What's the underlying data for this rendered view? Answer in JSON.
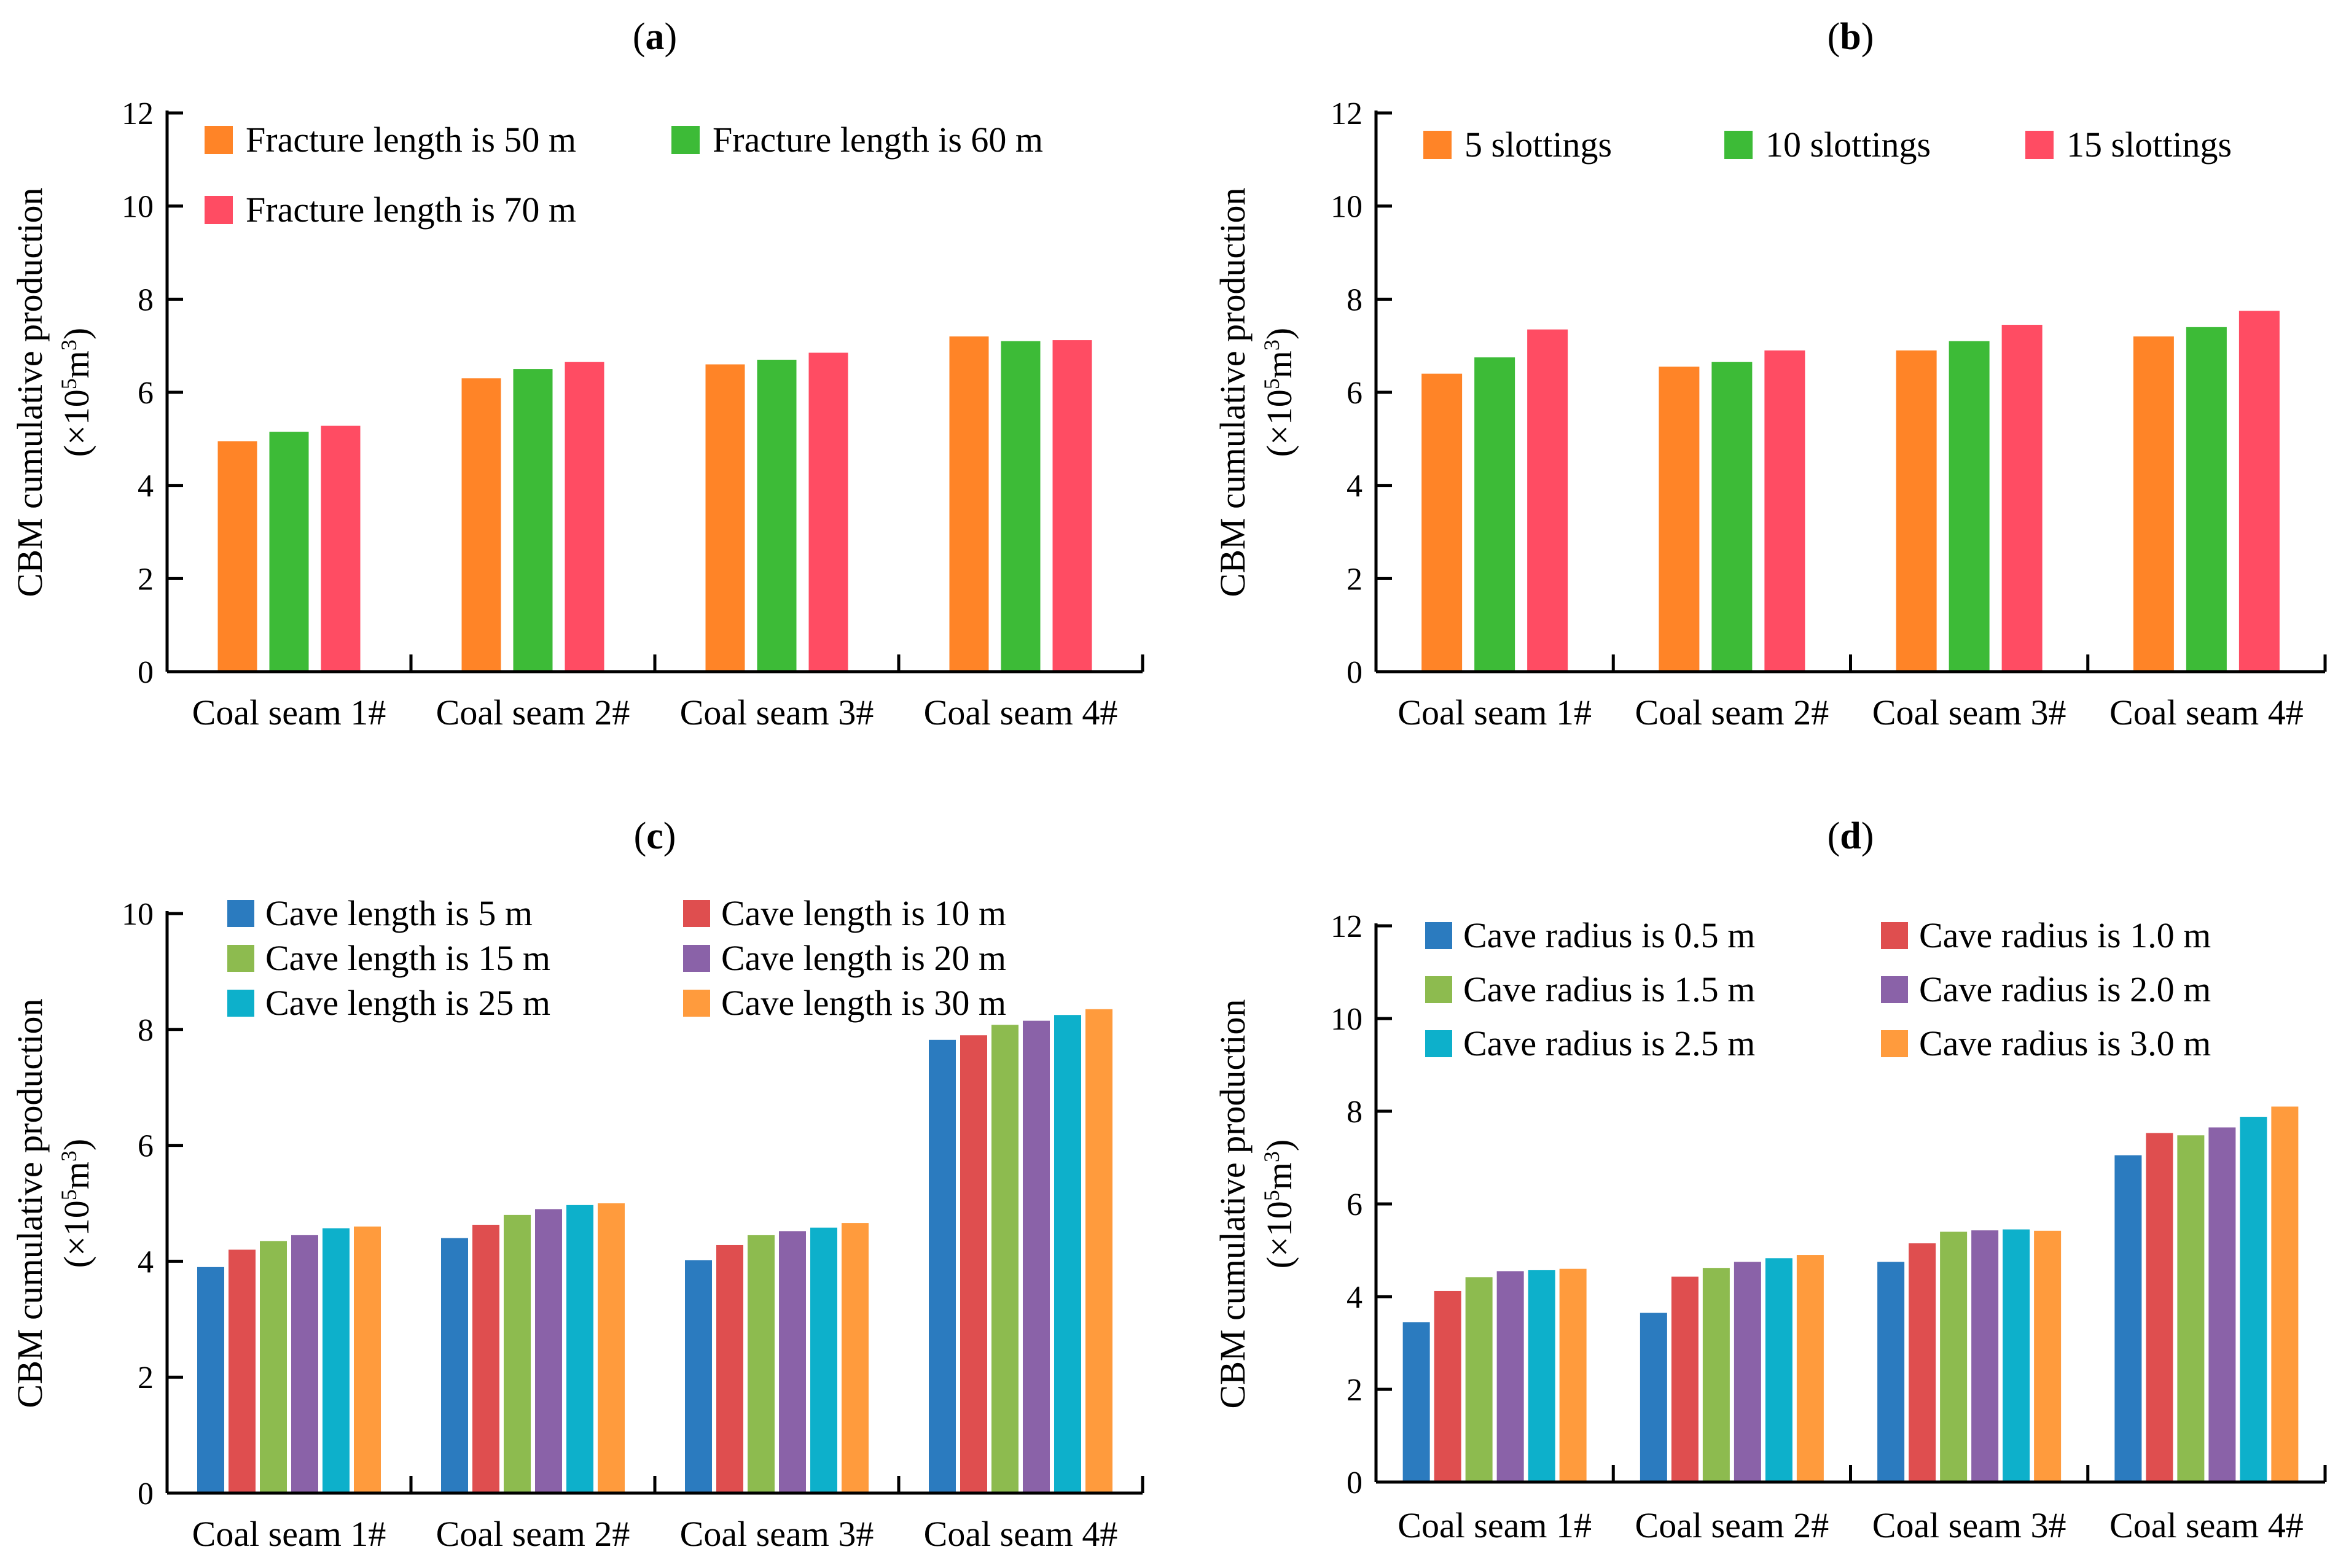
{
  "ylabel_line1": "CBM cumulative production",
  "ylabel_line2_prefix": "(×10",
  "ylabel_line2_exp": "5",
  "ylabel_line2_mid": "m",
  "ylabel_line2_exp2": "3",
  "ylabel_line2_suffix": ")",
  "chart_data": [
    {
      "id": "a",
      "type": "bar",
      "panel_label": "a",
      "categories": [
        "Coal seam 1#",
        "Coal seam 2#",
        "Coal seam 3#",
        "Coal seam 4#"
      ],
      "ylim": [
        0,
        12
      ],
      "yticks": [
        0,
        2,
        4,
        6,
        8,
        10,
        12
      ],
      "legend_columns": 2,
      "series": [
        {
          "name": "Fracture length is 50 m",
          "color": "#FF8427",
          "values": [
            4.95,
            6.3,
            6.6,
            7.2
          ]
        },
        {
          "name": "Fracture length is 60 m",
          "color": "#3DBB37",
          "values": [
            5.15,
            6.5,
            6.7,
            7.1
          ]
        },
        {
          "name": "Fracture length is 70 m",
          "color": "#FF4C63",
          "values": [
            5.28,
            6.65,
            6.85,
            7.12
          ]
        }
      ]
    },
    {
      "id": "b",
      "type": "bar",
      "panel_label": "b",
      "categories": [
        "Coal seam 1#",
        "Coal seam 2#",
        "Coal seam 3#",
        "Coal seam 4#"
      ],
      "ylim": [
        0,
        12
      ],
      "yticks": [
        0,
        2,
        4,
        6,
        8,
        10,
        12
      ],
      "legend_columns": 3,
      "series": [
        {
          "name": "5 slottings",
          "color": "#FF8427",
          "values": [
            6.4,
            6.55,
            6.9,
            7.2
          ]
        },
        {
          "name": "10 slottings",
          "color": "#3DBB37",
          "values": [
            6.75,
            6.65,
            7.1,
            7.4
          ]
        },
        {
          "name": "15 slottings",
          "color": "#FF4C63",
          "values": [
            7.35,
            6.9,
            7.45,
            7.75
          ]
        }
      ]
    },
    {
      "id": "c",
      "type": "bar",
      "panel_label": "c",
      "categories": [
        "Coal seam 1#",
        "Coal seam 2#",
        "Coal seam 3#",
        "Coal seam 4#"
      ],
      "ylim": [
        0,
        10
      ],
      "yticks": [
        0,
        2,
        4,
        6,
        8,
        10
      ],
      "legend_columns": 2,
      "series": [
        {
          "name": "Cave length is 5 m",
          "color": "#2B7BBF",
          "values": [
            3.9,
            4.4,
            4.02,
            7.82
          ]
        },
        {
          "name": "Cave length is 10 m",
          "color": "#DF4E4F",
          "values": [
            4.2,
            4.63,
            4.28,
            7.9
          ]
        },
        {
          "name": "Cave length is 15 m",
          "color": "#8DBB4F",
          "values": [
            4.35,
            4.8,
            4.45,
            8.08
          ]
        },
        {
          "name": "Cave length is 20 m",
          "color": "#8A62A8",
          "values": [
            4.45,
            4.9,
            4.52,
            8.15
          ]
        },
        {
          "name": "Cave length is 25 m",
          "color": "#0DB0CB",
          "values": [
            4.57,
            4.97,
            4.58,
            8.25
          ]
        },
        {
          "name": "Cave length is 30 m",
          "color": "#FF9B3D",
          "values": [
            4.6,
            5.0,
            4.66,
            8.35
          ]
        }
      ]
    },
    {
      "id": "d",
      "type": "bar",
      "panel_label": "d",
      "categories": [
        "Coal seam 1#",
        "Coal seam 2#",
        "Coal seam 3#",
        "Coal seam 4#"
      ],
      "ylim": [
        0,
        12
      ],
      "yticks": [
        0,
        2,
        4,
        6,
        8,
        10,
        12
      ],
      "legend_columns": 2,
      "series": [
        {
          "name": "Cave radius is 0.5 m",
          "color": "#2B7BBF",
          "values": [
            3.45,
            3.65,
            4.75,
            7.05
          ]
        },
        {
          "name": "Cave radius is 1.0 m",
          "color": "#DF4E4F",
          "values": [
            4.12,
            4.43,
            5.15,
            7.53
          ]
        },
        {
          "name": "Cave radius is 1.5 m",
          "color": "#8DBB4F",
          "values": [
            4.42,
            4.62,
            5.4,
            7.48
          ]
        },
        {
          "name": "Cave radius is 2.0 m",
          "color": "#8A62A8",
          "values": [
            4.55,
            4.75,
            5.43,
            7.65
          ]
        },
        {
          "name": "Cave radius is 2.5 m",
          "color": "#0DB0CB",
          "values": [
            4.57,
            4.83,
            5.45,
            7.88
          ]
        },
        {
          "name": "Cave radius is 3.0 m",
          "color": "#FF9B3D",
          "values": [
            4.6,
            4.9,
            5.42,
            8.1
          ]
        }
      ]
    }
  ]
}
